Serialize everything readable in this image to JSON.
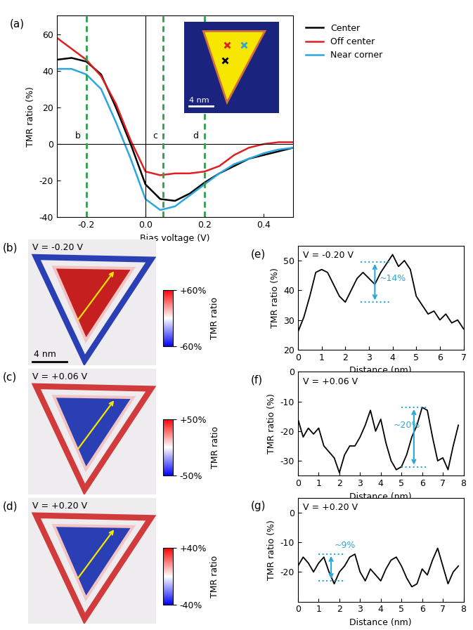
{
  "chart_data": [
    {
      "type": "line",
      "label": "(a)",
      "xlabel": "Bias voltage (V)",
      "ylabel": "TMR ratio (%)",
      "x": [
        -0.3,
        -0.25,
        -0.2,
        -0.15,
        -0.1,
        -0.05,
        0,
        0.05,
        0.1,
        0.15,
        0.2,
        0.25,
        0.3,
        0.35,
        0.4,
        0.45,
        0.5
      ],
      "series": [
        {
          "name": "Center",
          "color": "#000000",
          "values": [
            46,
            47,
            45,
            38,
            20,
            0,
            -22,
            -30,
            -31,
            -27,
            -21,
            -16,
            -12,
            -8,
            -6,
            -4,
            -2
          ]
        },
        {
          "name": "Off center",
          "color": "#e02020",
          "values": [
            58,
            52,
            46,
            37,
            22,
            2,
            -15,
            -17,
            -16,
            -16,
            -15,
            -12,
            -6,
            -2,
            0,
            1,
            1
          ]
        },
        {
          "name": "Near corner",
          "color": "#2aa7e0",
          "values": [
            41,
            41,
            38,
            30,
            12,
            -8,
            -30,
            -36,
            -34,
            -28,
            -22,
            -16,
            -11,
            -8,
            -5,
            -3,
            -2
          ]
        }
      ],
      "xlim": [
        -0.3,
        0.5
      ],
      "xticks": [
        -0.2,
        {
          "value": 0,
          "label": "0.0"
        },
        0.2,
        0.4
      ],
      "ylim": [
        -40,
        70
      ],
      "yticks": [
        -40,
        -20,
        0,
        20,
        40,
        60
      ],
      "legend": "outside right",
      "annotations": [
        {
          "x": -0.2,
          "text": "b"
        },
        {
          "x": 0.06,
          "text": "c"
        },
        {
          "x": 0.2,
          "text": "d"
        }
      ],
      "annotation_color": "#2e9e4a",
      "inset_scale": "4 nm"
    },
    {
      "type": "map",
      "label": "(b)",
      "title": "V = -0.20 V",
      "scale": "4 nm",
      "colors": [
        "#c61f1f",
        "#2b3fb5"
      ],
      "colorbar": {
        "label": "TMR ratio",
        "range": [
          -60,
          60
        ],
        "ticks": [
          {
            "value": 60,
            "label": "+60%"
          },
          {
            "value": -60,
            "label": "-60%"
          }
        ]
      }
    },
    {
      "type": "map",
      "label": "(c)",
      "title": "V = +0.06 V",
      "colors": [
        "#2b3fb5",
        "#d23b3b"
      ],
      "colorbar": {
        "label": "TMR ratio",
        "range": [
          -50,
          50
        ],
        "ticks": [
          {
            "value": 50,
            "label": "+50%"
          },
          {
            "value": -50,
            "label": "-50%"
          }
        ]
      }
    },
    {
      "type": "map",
      "label": "(d)",
      "title": "V = +0.20 V",
      "colors": [
        "#2b3fb5",
        "#d23b3b"
      ],
      "colorbar": {
        "label": "TMR ratio",
        "range": [
          -40,
          40
        ],
        "ticks": [
          {
            "value": 40,
            "label": "+40%"
          },
          {
            "value": -40,
            "label": "-40%"
          }
        ]
      }
    },
    {
      "type": "line",
      "label": "(e)",
      "title": "V = -0.20 V",
      "xlabel": "Distance (nm)",
      "ylabel": "TMR ratio (%)",
      "color": "#000000",
      "x": [
        0,
        0.25,
        0.5,
        0.75,
        1,
        1.25,
        1.5,
        1.75,
        2,
        2.25,
        2.5,
        2.75,
        3,
        3.25,
        3.5,
        3.75,
        4,
        4.25,
        4.5,
        4.75,
        5,
        5.25,
        5.5,
        5.75,
        6,
        6.25,
        6.5,
        6.75,
        7
      ],
      "values": [
        26,
        31,
        38,
        46,
        47,
        46,
        42,
        38,
        36,
        40,
        44,
        46,
        44,
        42,
        46,
        49,
        52,
        48,
        50,
        47,
        38,
        35,
        32,
        33,
        30,
        32,
        29,
        30,
        27
      ],
      "xlim": [
        0,
        7
      ],
      "xticks": [
        0,
        1,
        2,
        3,
        4,
        5,
        6,
        7
      ],
      "ylim": [
        20,
        55
      ],
      "yticks": [
        20,
        30,
        40,
        50
      ],
      "annotations": [
        {
          "text": "~14%",
          "x": 3.25,
          "low": 36,
          "high": 49.5,
          "text_x": 3.45,
          "text_y": 44
        }
      ],
      "annotation_color": "#2aa7d8"
    },
    {
      "type": "line",
      "label": "(f)",
      "title": "V = +0.06 V",
      "xlabel": "Distance (nm)",
      "ylabel": "TMR ratio (%)",
      "color": "#000000",
      "x": [
        0,
        0.25,
        0.5,
        0.75,
        1,
        1.25,
        1.5,
        1.75,
        2,
        2.25,
        2.5,
        2.75,
        3,
        3.25,
        3.5,
        3.75,
        4,
        4.25,
        4.5,
        4.75,
        5,
        5.25,
        5.5,
        5.75,
        6,
        6.25,
        6.5,
        6.75,
        7,
        7.25,
        7.5,
        7.75
      ],
      "values": [
        -16,
        -22,
        -19,
        -21,
        -19,
        -25,
        -27,
        -29,
        -34,
        -28,
        -25,
        -25,
        -22,
        -18,
        -13,
        -20,
        -16,
        -24,
        -30,
        -33,
        -32,
        -28,
        -22,
        -18,
        -12,
        -13,
        -22,
        -30,
        -29,
        -33,
        -25,
        -18
      ],
      "xlim": [
        0,
        8
      ],
      "xticks": [
        0,
        1,
        2,
        3,
        4,
        5,
        6,
        7,
        8
      ],
      "ylim": [
        -35,
        0
      ],
      "yticks": [
        -30,
        -20,
        -10,
        0
      ],
      "annotations": [
        {
          "text": "~20%",
          "x": 5.6,
          "low": -32,
          "high": -12,
          "text_x": 4.6,
          "text_y": -18
        }
      ],
      "annotation_color": "#2aa7d8"
    },
    {
      "type": "line",
      "label": "(g)",
      "title": "V = +0.20 V",
      "xlabel": "Distance (nm)",
      "ylabel": "TMR ratio (%)",
      "color": "#000000",
      "x": [
        0,
        0.25,
        0.5,
        0.75,
        1,
        1.25,
        1.5,
        1.75,
        2,
        2.25,
        2.5,
        2.75,
        3,
        3.25,
        3.5,
        3.75,
        4,
        4.25,
        4.5,
        4.75,
        5,
        5.25,
        5.5,
        5.75,
        6,
        6.25,
        6.5,
        6.75,
        7,
        7.25,
        7.5,
        7.75
      ],
      "values": [
        -18,
        -15,
        -17,
        -20,
        -17,
        -15,
        -20,
        -24,
        -20,
        -18,
        -15,
        -14,
        -20,
        -23,
        -19,
        -21,
        -23,
        -19,
        -16,
        -15,
        -18,
        -22,
        -25,
        -24,
        -19,
        -21,
        -16,
        -12,
        -18,
        -24,
        -20,
        -18
      ],
      "xlim": [
        0,
        8
      ],
      "xticks": [
        0,
        1,
        2,
        3,
        4,
        5,
        6,
        7,
        8
      ],
      "ylim": [
        -30,
        5
      ],
      "yticks": [
        -20,
        -10,
        0
      ],
      "annotations": [
        {
          "text": "~9%",
          "x": 1.6,
          "low": -23,
          "high": -14,
          "text_x": 1.75,
          "text_y": -11
        }
      ],
      "annotation_color": "#2aa7d8"
    }
  ]
}
